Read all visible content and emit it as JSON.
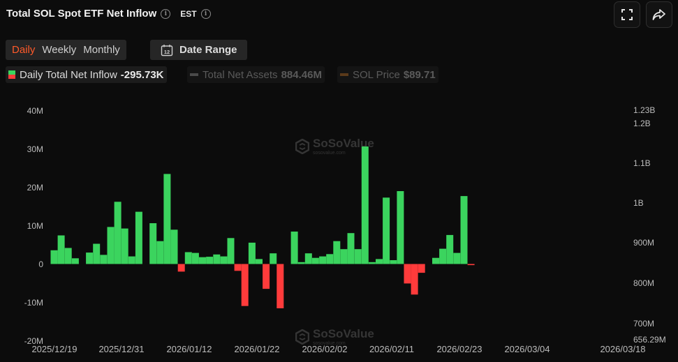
{
  "header": {
    "title": "Total SOL Spot ETF Net Inflow",
    "timezone": "EST"
  },
  "tabs": [
    {
      "label": "Daily",
      "active": true
    },
    {
      "label": "Weekly",
      "active": false
    },
    {
      "label": "Monthly",
      "active": false
    }
  ],
  "date_range": {
    "label": "Date Range",
    "icon_text": "12"
  },
  "legend": {
    "inflow": {
      "label": "Daily Total Net Inflow",
      "value": "-295.73K"
    },
    "assets": {
      "label": "Total Net Assets",
      "value": "884.46M"
    },
    "price": {
      "label": "SOL Price",
      "value": "$89.71"
    }
  },
  "watermark": {
    "name": "SoSoValue",
    "sub": "sosovalue.com"
  },
  "colors": {
    "positive": "#3bd45e",
    "negative": "#ff3b3b",
    "accent": "#ff5a2a"
  },
  "chart_data": {
    "type": "bar",
    "title": "Total SOL Spot ETF Net Inflow",
    "y_left": {
      "ticks": [
        "40M",
        "30M",
        "20M",
        "10M",
        "0",
        "-10M",
        "-20M"
      ],
      "range_millions": [
        -20,
        40
      ]
    },
    "y_right": {
      "ticks": [
        "1.23B",
        "1.2B",
        "1.1B",
        "1B",
        "900M",
        "800M",
        "700M",
        "656.29M"
      ]
    },
    "x_tick_labels": [
      "2025/12/19",
      "2025/12/31",
      "2026/01/12",
      "2026/01/22",
      "2026/02/02",
      "2026/02/11",
      "2026/02/23",
      "2026/03/04",
      "2026/03/18"
    ],
    "grid": false,
    "series": [
      {
        "name": "Daily Total Net Inflow",
        "unit": "millions USD",
        "values": [
          3.6,
          7.5,
          4.2,
          1.5,
          null,
          3.0,
          5.3,
          2.4,
          9.7,
          16.3,
          9.3,
          2.0,
          13.7,
          null,
          10.7,
          6.0,
          23.6,
          9.0,
          -2.0,
          3.1,
          2.9,
          1.8,
          1.9,
          2.5,
          2.0,
          6.8,
          -1.8,
          -11.0,
          5.6,
          1.3,
          -6.5,
          2.8,
          -11.6,
          null,
          8.5,
          0.5,
          2.8,
          1.6,
          2.0,
          2.6,
          6.0,
          3.9,
          8.1,
          3.9,
          30.8,
          0.5,
          1.3,
          17.4,
          1.0,
          19.1,
          -5.1,
          -8.0,
          -2.3,
          null,
          1.6,
          4.0,
          7.6,
          2.9,
          17.8,
          -0.3
        ]
      }
    ]
  }
}
